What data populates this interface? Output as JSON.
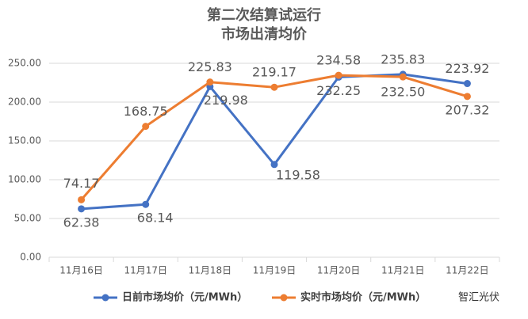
{
  "chart_data": {
    "type": "line",
    "title": [
      "第二次结算试运行",
      "市场出清均价"
    ],
    "categories": [
      "11月16日",
      "11月17日",
      "11月18日",
      "11月19日",
      "11月20日",
      "11月21日",
      "11月22日"
    ],
    "series": [
      {
        "name": "日前市场均价（元/MWh）",
        "color": "#4472c4",
        "values": [
          62.38,
          68.14,
          219.98,
          119.58,
          232.25,
          235.83,
          223.92
        ]
      },
      {
        "name": "实时市场均价（元/MWh）",
        "color": "#ed7d31",
        "values": [
          74.17,
          168.75,
          225.83,
          219.17,
          234.58,
          232.5,
          207.32
        ],
        "value_labels": [
          "74.17",
          "168.75",
          "225.83",
          "219.17",
          "234.58",
          "232.50",
          "207.32"
        ]
      }
    ],
    "ylim": [
      0,
      250
    ],
    "yticks": [
      {
        "value": 0,
        "label": "0.00"
      },
      {
        "value": 50,
        "label": "50.00"
      },
      {
        "value": 100,
        "label": "100.00"
      },
      {
        "value": 150,
        "label": "150.00"
      },
      {
        "value": 200,
        "label": "200.00"
      },
      {
        "value": 250,
        "label": "250.00"
      }
    ],
    "grid": true,
    "legend": "bottom",
    "watermark": "智汇光伏"
  }
}
